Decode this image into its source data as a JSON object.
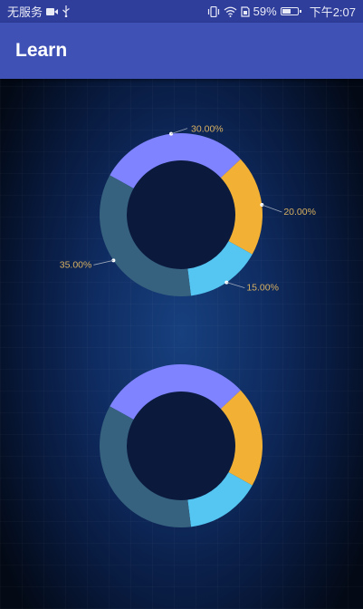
{
  "status_bar": {
    "carrier": "无服务",
    "battery": "59%",
    "battery_level": 0.59,
    "time": "下午2:07",
    "icons": [
      "video-camera-icon",
      "usb-icon",
      "vibrate-icon",
      "wifi-icon",
      "sim-icon",
      "battery-icon"
    ]
  },
  "app_bar": {
    "title": "Learn",
    "color": "#3F51B5"
  },
  "chart_data": [
    {
      "type": "pie",
      "donut": true,
      "show_labels": true,
      "slices": [
        {
          "label": "30.00%",
          "value": 30,
          "color": "#7F83FF"
        },
        {
          "label": "20.00%",
          "value": 20,
          "color": "#F2B134"
        },
        {
          "label": "15.00%",
          "value": 15,
          "color": "#55C6F2"
        },
        {
          "label": "35.00%",
          "value": 35,
          "color": "#36627F"
        }
      ],
      "label_color": "#D8B060"
    },
    {
      "type": "pie",
      "donut": true,
      "show_labels": false,
      "slices": [
        {
          "label": "30.00%",
          "value": 30,
          "color": "#7F83FF"
        },
        {
          "label": "20.00%",
          "value": 20,
          "color": "#F2B134"
        },
        {
          "label": "15.00%",
          "value": 15,
          "color": "#55C6F2"
        },
        {
          "label": "35.00%",
          "value": 35,
          "color": "#36627F"
        }
      ]
    }
  ]
}
